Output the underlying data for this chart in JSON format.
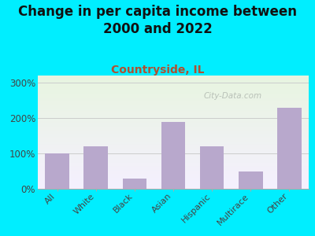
{
  "title": "Change in per capita income between\n2000 and 2022",
  "subtitle": "Countryside, IL",
  "categories": [
    "All",
    "White",
    "Black",
    "Asian",
    "Hispanic",
    "Multirace",
    "Other"
  ],
  "values": [
    100,
    120,
    30,
    190,
    120,
    50,
    230
  ],
  "bar_color": "#b8a8cc",
  "background_outer": "#00eeff",
  "background_inner_colors": [
    "#e8f5e0",
    "#f5f0ff"
  ],
  "title_fontsize": 12,
  "title_color": "#111111",
  "subtitle_fontsize": 10,
  "subtitle_color": "#b05030",
  "ylabel_ticks": [
    "0%",
    "100%",
    "200%",
    "300%"
  ],
  "ytick_vals": [
    0,
    100,
    200,
    300
  ],
  "ylim": [
    0,
    320
  ],
  "watermark": "City-Data.com",
  "watermark_color": "#b0b8b0"
}
